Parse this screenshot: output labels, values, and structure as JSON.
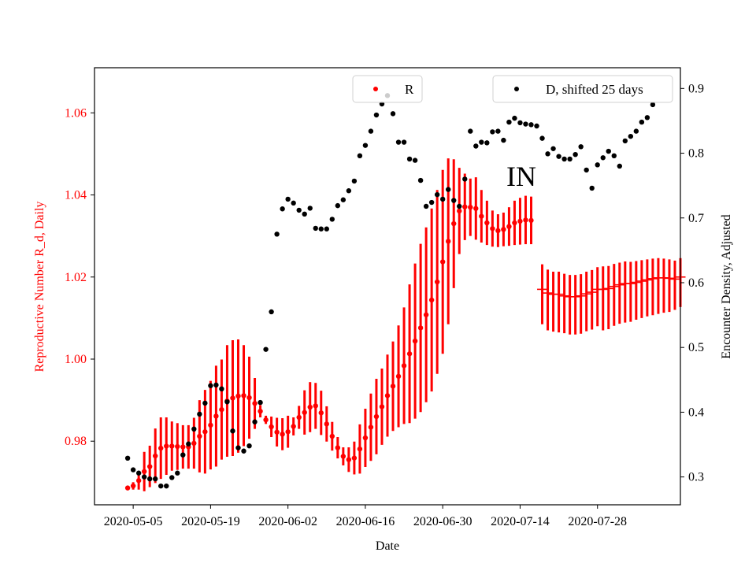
{
  "chart_data": {
    "type": "line",
    "annotation": "IN",
    "xlabel": "Date",
    "ylabel_left": "Reproductive Number R_d, Daily",
    "ylabel_right": "Encounter Density, Adjusted",
    "x_ticks": [
      "2020-05-05",
      "2020-05-19",
      "2020-06-02",
      "2020-06-16",
      "2020-06-30",
      "2020-07-14",
      "2020-07-28"
    ],
    "y_left_ticks": [
      "0.98",
      "1.00",
      "1.02",
      "1.04",
      "1.06"
    ],
    "y_right_ticks": [
      "0.3",
      "0.4",
      "0.5",
      "0.6",
      "0.7",
      "0.8",
      "0.9"
    ],
    "xlim": [
      "2020-04-28",
      "2020-08-12"
    ],
    "ylim_left": [
      0.9645,
      1.071
    ],
    "ylim_right": [
      0.257,
      0.932
    ],
    "legend_placement": "top",
    "colors": {
      "R": "#ff0000",
      "D": "#000000"
    },
    "series": [
      {
        "name": "R",
        "axis": "left",
        "start_date": "2020-05-04",
        "values": [
          0.9686,
          0.9691,
          0.9704,
          0.9726,
          0.9738,
          0.9764,
          0.9783,
          0.9788,
          0.9788,
          0.9787,
          0.9786,
          0.9786,
          0.9795,
          0.9812,
          0.9823,
          0.9839,
          0.9861,
          0.9877,
          0.9898,
          0.9905,
          0.991,
          0.9911,
          0.9906,
          0.9892,
          0.9873,
          0.9852,
          0.9835,
          0.9822,
          0.9817,
          0.9823,
          0.9836,
          0.9858,
          0.987,
          0.9883,
          0.9886,
          0.9869,
          0.9842,
          0.9812,
          0.9784,
          0.9763,
          0.9755,
          0.9759,
          0.9781,
          0.9808,
          0.9834,
          0.986,
          0.9884,
          0.9911,
          0.9934,
          0.9958,
          0.9984,
          1.0013,
          1.0044,
          1.0076,
          1.0108,
          1.0144,
          1.0188,
          1.0237,
          1.0287,
          1.033,
          1.0361,
          1.0371,
          1.037,
          1.0367,
          1.0348,
          1.0332,
          1.0318,
          1.0313,
          1.0316,
          1.0323,
          1.0332,
          1.0336,
          1.0339,
          1.0338
        ],
        "err_low": [
          0.9686,
          0.9682,
          0.9682,
          0.9678,
          0.9688,
          0.9698,
          0.9708,
          0.9718,
          0.9728,
          0.973,
          0.9733,
          0.9733,
          0.9733,
          0.9724,
          0.9721,
          0.9731,
          0.9738,
          0.9755,
          0.9762,
          0.9764,
          0.9772,
          0.9788,
          0.9806,
          0.983,
          0.9858,
          0.9862,
          0.986,
          0.9857,
          0.9856,
          0.9862,
          0.9858,
          0.983,
          0.9816,
          0.9822,
          0.983,
          0.9815,
          0.9799,
          0.9777,
          0.9758,
          0.9741,
          0.9725,
          0.9719,
          0.9721,
          0.9737,
          0.9752,
          0.9768,
          0.9791,
          0.9811,
          0.9825,
          0.9834,
          0.9842,
          0.9844,
          0.9855,
          0.9871,
          0.9895,
          0.9921,
          0.9964,
          1.0013,
          1.0085,
          1.0173,
          1.0256,
          1.029,
          1.03,
          1.0291,
          1.0284,
          1.0278,
          1.0274,
          1.0273,
          1.0275,
          1.0276,
          1.0278,
          1.0279,
          1.028,
          1.028
        ],
        "err_high": [
          0.9686,
          0.97,
          0.9726,
          0.9774,
          0.9789,
          0.9831,
          0.9858,
          0.9858,
          0.9848,
          0.9844,
          0.9839,
          0.9839,
          0.9857,
          0.99,
          0.9925,
          0.9947,
          0.9984,
          0.9999,
          1.0034,
          1.0046,
          1.0048,
          1.0034,
          1.0006,
          0.9954,
          0.9888,
          0.9842,
          0.981,
          0.9787,
          0.9778,
          0.9784,
          0.9814,
          0.9886,
          0.9924,
          0.9944,
          0.9942,
          0.9923,
          0.9885,
          0.9847,
          0.981,
          0.9785,
          0.9785,
          0.9799,
          0.9841,
          0.9879,
          0.9916,
          0.9952,
          0.9977,
          1.0011,
          1.0043,
          1.0082,
          1.0126,
          1.0182,
          1.0233,
          1.0281,
          1.0321,
          1.0367,
          1.0412,
          1.0461,
          1.0489,
          1.0487,
          1.0466,
          1.0452,
          1.044,
          1.0443,
          1.0412,
          1.0386,
          1.0362,
          1.0353,
          1.0357,
          1.037,
          1.0386,
          1.0393,
          1.0398,
          1.0396
        ]
      },
      {
        "name": "",
        "axis": "left",
        "start_date": "2020-07-18",
        "values": [
          1.017,
          1.0161,
          1.0158,
          1.0158,
          1.0154,
          1.0152,
          1.0152,
          1.0154,
          1.0159,
          1.0163,
          1.017,
          1.017,
          1.0172,
          1.0177,
          1.0181,
          1.0184,
          1.0184,
          1.0187,
          1.019,
          1.0193,
          1.0196,
          1.0198,
          1.0198,
          1.0197,
          1.0195,
          1.02
        ],
        "err_low": [
          1.0085,
          1.007,
          1.0067,
          1.0065,
          1.0063,
          1.006,
          1.006,
          1.0062,
          1.0068,
          1.0072,
          1.008,
          1.007,
          1.0073,
          1.0081,
          1.0086,
          1.0089,
          1.0091,
          1.0096,
          1.01,
          1.0104,
          1.0107,
          1.011,
          1.0113,
          1.0115,
          1.012,
          1.0127
        ],
        "err_high": [
          1.0231,
          1.0218,
          1.0213,
          1.0213,
          1.0208,
          1.0205,
          1.0205,
          1.0207,
          1.0213,
          1.0217,
          1.0224,
          1.0226,
          1.0227,
          1.0232,
          1.0235,
          1.0238,
          1.0237,
          1.0239,
          1.0241,
          1.0243,
          1.0245,
          1.0246,
          1.0245,
          1.0243,
          1.024,
          1.0246
        ],
        "bar_marker": true
      },
      {
        "name": "D, shifted 25 days",
        "axis": "right",
        "start_date": "2020-05-04",
        "values": [
          0.329,
          0.311,
          0.306,
          0.3,
          0.297,
          0.297,
          0.286,
          0.286,
          0.299,
          0.306,
          0.334,
          0.351,
          0.374,
          0.397,
          0.414,
          0.441,
          0.442,
          0.436,
          0.416,
          0.371,
          0.345,
          0.34,
          0.348,
          0.385,
          0.415,
          0.497,
          0.555,
          0.675,
          0.714,
          0.729,
          0.723,
          0.712,
          0.706,
          0.715,
          0.684,
          0.683,
          0.683,
          0.698,
          0.719,
          0.728,
          0.742,
          0.757,
          0.796,
          0.812,
          0.834,
          0.859,
          0.876,
          0.889,
          0.861,
          0.817,
          0.817,
          0.791,
          0.789,
          0.758,
          0.718,
          0.724,
          0.736,
          0.729,
          0.744,
          0.727,
          0.718,
          0.76,
          0.834,
          0.811,
          0.817,
          0.816,
          0.833,
          0.834,
          0.82,
          0.848,
          0.854,
          0.847,
          0.845,
          0.844,
          0.842,
          0.823,
          0.799,
          0.807,
          0.795,
          0.791,
          0.791,
          0.798,
          0.81,
          0.774,
          0.746,
          0.782,
          0.793,
          0.803,
          0.796,
          0.78,
          0.819,
          0.826,
          0.834,
          0.848,
          0.855,
          0.875
        ]
      }
    ]
  }
}
